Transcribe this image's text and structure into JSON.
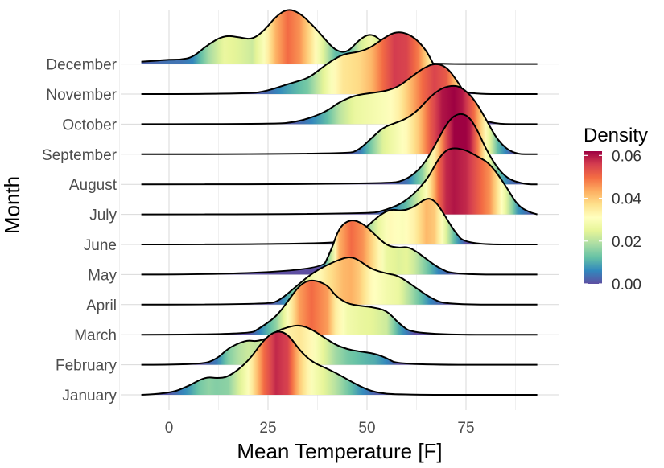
{
  "chart_data": {
    "type": "ridgeline",
    "xlabel": "Mean Temperature [F]",
    "ylabel": "Month",
    "x_ticks": [
      0,
      25,
      50,
      75
    ],
    "xlim": [
      -7,
      93
    ],
    "grid": true,
    "legend": {
      "title": "Density",
      "placement": "right",
      "labels": [
        "0.06",
        "0.04",
        "0.02",
        "0.00"
      ],
      "values": [
        0.06,
        0.04,
        0.02,
        0.0
      ],
      "range": [
        0.0,
        0.062
      ],
      "colorscale": [
        "#5e4fa2",
        "#3288bd",
        "#66c2a5",
        "#abdda4",
        "#e6f598",
        "#ffffbf",
        "#fee08b",
        "#fdae61",
        "#f46d43",
        "#d53e4f",
        "#9e0142"
      ]
    },
    "series": [
      {
        "name": "January",
        "x": [
          -7,
          0,
          5,
          8,
          10,
          12,
          15,
          20,
          24,
          27,
          30,
          33,
          36,
          39,
          42,
          45,
          48,
          52,
          58,
          93
        ],
        "density": [
          0,
          0.001,
          0.008,
          0.014,
          0.016,
          0.015,
          0.016,
          0.03,
          0.05,
          0.058,
          0.055,
          0.04,
          0.03,
          0.025,
          0.02,
          0.014,
          0.008,
          0.002,
          0,
          0
        ]
      },
      {
        "name": "February",
        "x": [
          -7,
          8,
          12,
          15,
          18,
          20,
          22,
          25,
          27,
          30,
          33,
          36,
          39,
          42,
          45,
          48,
          52,
          55,
          58,
          93
        ],
        "density": [
          0,
          0,
          0.005,
          0.015,
          0.02,
          0.022,
          0.021,
          0.024,
          0.03,
          0.034,
          0.036,
          0.032,
          0.025,
          0.018,
          0.014,
          0.012,
          0.01,
          0.006,
          0,
          0
        ]
      },
      {
        "name": "March",
        "x": [
          -7,
          20,
          23,
          27,
          30,
          33,
          36,
          40,
          42,
          45,
          48,
          51,
          55,
          58,
          62,
          93
        ],
        "density": [
          0,
          0,
          0.006,
          0.016,
          0.03,
          0.045,
          0.05,
          0.045,
          0.035,
          0.028,
          0.026,
          0.025,
          0.022,
          0.01,
          0,
          0
        ]
      },
      {
        "name": "April",
        "x": [
          -7,
          25,
          28,
          32,
          36,
          40,
          44,
          46,
          48,
          51,
          55,
          58,
          62,
          66,
          70,
          93
        ],
        "density": [
          0,
          0,
          0.004,
          0.016,
          0.028,
          0.036,
          0.042,
          0.043,
          0.04,
          0.032,
          0.028,
          0.026,
          0.016,
          0.006,
          0,
          0
        ]
      },
      {
        "name": "May",
        "x": [
          -7,
          38,
          41,
          43,
          46,
          49,
          52,
          55,
          58,
          60,
          62,
          65,
          68,
          72,
          93
        ],
        "density": [
          0,
          0,
          0.022,
          0.043,
          0.05,
          0.046,
          0.036,
          0.026,
          0.024,
          0.025,
          0.022,
          0.014,
          0.006,
          0,
          0
        ]
      },
      {
        "name": "June",
        "x": [
          -7,
          40,
          46,
          50,
          53,
          56,
          59,
          62,
          65,
          67,
          69,
          72,
          75,
          93
        ],
        "density": [
          0,
          0,
          0.005,
          0.016,
          0.026,
          0.032,
          0.03,
          0.034,
          0.042,
          0.04,
          0.03,
          0.012,
          0,
          0
        ]
      },
      {
        "name": "July",
        "x": [
          -7,
          50,
          55,
          60,
          65,
          68,
          70,
          72,
          75,
          78,
          81,
          85,
          88,
          91,
          93
        ],
        "density": [
          0,
          0,
          0.004,
          0.012,
          0.03,
          0.05,
          0.058,
          0.06,
          0.058,
          0.052,
          0.046,
          0.026,
          0.008,
          0.002,
          0
        ]
      },
      {
        "name": "August",
        "x": [
          -7,
          55,
          60,
          64,
          67,
          70,
          72,
          74,
          76,
          78,
          80,
          83,
          86,
          90,
          93
        ],
        "density": [
          0,
          0,
          0.004,
          0.016,
          0.034,
          0.054,
          0.062,
          0.064,
          0.06,
          0.048,
          0.032,
          0.014,
          0.004,
          0,
          0
        ]
      },
      {
        "name": "September",
        "x": [
          -7,
          45,
          48,
          51,
          54,
          57,
          60,
          63,
          66,
          69,
          72,
          74,
          77,
          80,
          83,
          87,
          93
        ],
        "density": [
          0,
          0,
          0.004,
          0.014,
          0.024,
          0.028,
          0.032,
          0.04,
          0.052,
          0.06,
          0.062,
          0.06,
          0.05,
          0.032,
          0.012,
          0,
          0
        ]
      },
      {
        "name": "October",
        "x": [
          -7,
          27,
          32,
          36,
          40,
          43,
          47,
          51,
          55,
          58,
          61,
          64,
          67,
          70,
          73,
          77,
          80,
          93
        ],
        "density": [
          0,
          0,
          0.002,
          0.006,
          0.012,
          0.02,
          0.026,
          0.028,
          0.03,
          0.034,
          0.042,
          0.05,
          0.055,
          0.052,
          0.038,
          0.014,
          0,
          0
        ]
      },
      {
        "name": "November",
        "x": [
          -7,
          20,
          25,
          30,
          35,
          38,
          41,
          44,
          48,
          51,
          54,
          57,
          60,
          63,
          66,
          70,
          93
        ],
        "density": [
          0,
          0,
          0.003,
          0.009,
          0.014,
          0.022,
          0.03,
          0.036,
          0.038,
          0.042,
          0.05,
          0.056,
          0.055,
          0.048,
          0.034,
          0,
          0
        ]
      },
      {
        "name": "December",
        "x": [
          -7,
          -3,
          0,
          3,
          6,
          10,
          14,
          18,
          21,
          24,
          27,
          30,
          33,
          36,
          39,
          42,
          45,
          48,
          51,
          54,
          56,
          59,
          93
        ],
        "density": [
          0.002,
          0.003,
          0.004,
          0.004,
          0.006,
          0.018,
          0.026,
          0.024,
          0.022,
          0.03,
          0.043,
          0.05,
          0.046,
          0.036,
          0.024,
          0.012,
          0.01,
          0.022,
          0.028,
          0.02,
          0.01,
          0,
          0
        ]
      }
    ]
  }
}
